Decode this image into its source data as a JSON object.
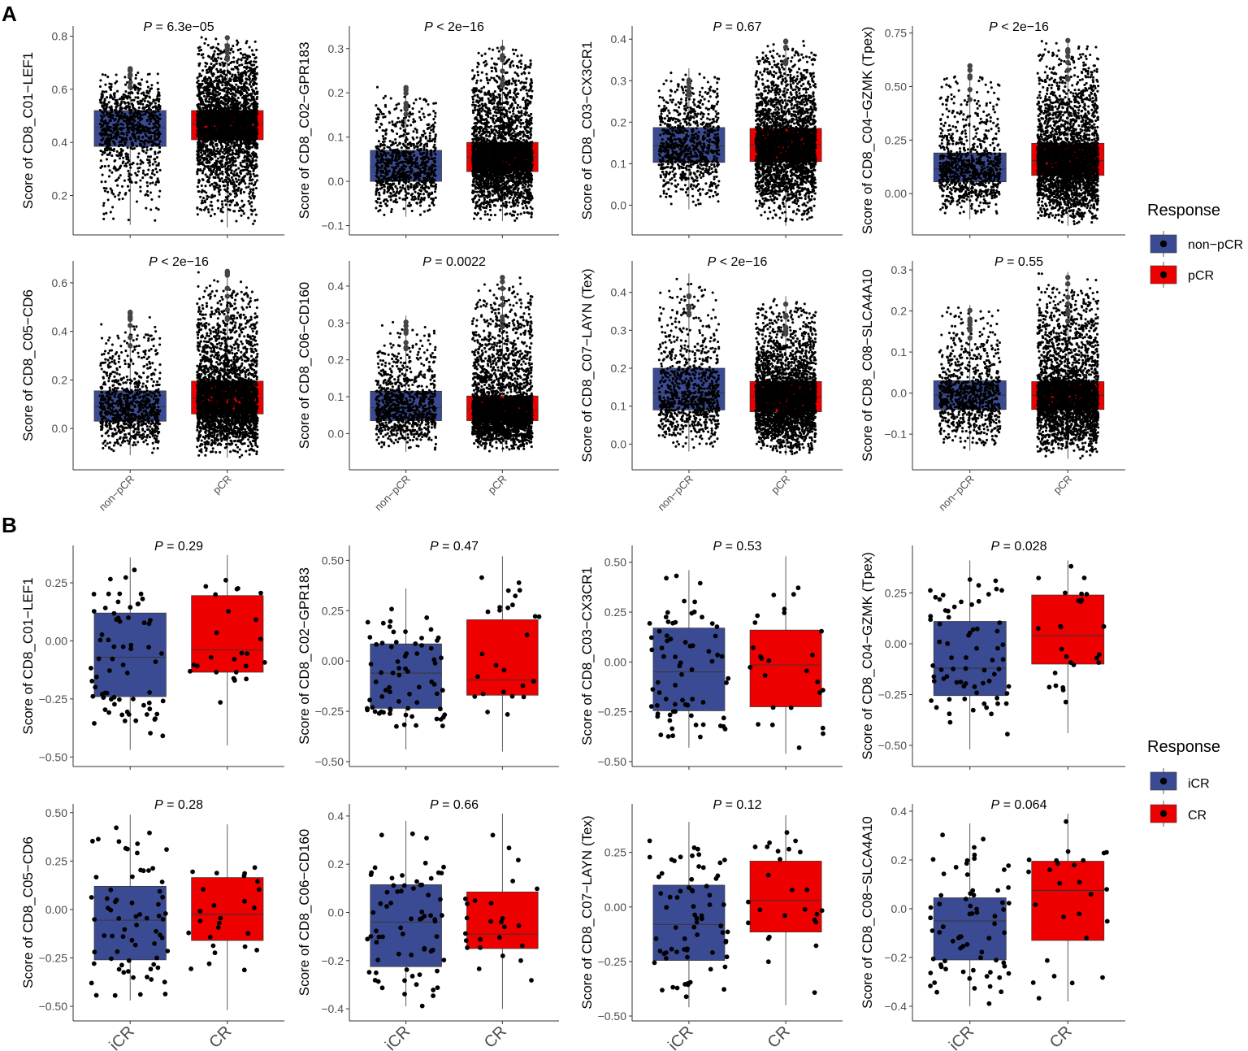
{
  "colors": {
    "non_pcr": "#3B4B93",
    "pcr": "#EE0000",
    "icr": "#3B4B93",
    "cr": "#EE0000",
    "points": "#000000",
    "axis": "#333333"
  },
  "panel_a": {
    "label": "A",
    "legend": {
      "title": "Response",
      "items": [
        {
          "label": "non−pCR",
          "color": "#3B4B93"
        },
        {
          "label": "pCR",
          "color": "#EE0000"
        }
      ]
    }
  },
  "panel_b": {
    "label": "B",
    "legend": {
      "title": "Response",
      "items": [
        {
          "label": "iCR",
          "color": "#3B4B93"
        },
        {
          "label": "CR",
          "color": "#EE0000"
        }
      ]
    }
  },
  "chart_data": [
    {
      "type": "box",
      "panel": "A",
      "title": "P = 6.3e−05",
      "p_label": "P",
      "p_text": " = 6.3e−05",
      "ylabel": "Score of CD8_C01−LEF1",
      "categories": [
        "non−pCR",
        "pCR"
      ],
      "ylim": [
        0.07,
        0.82
      ],
      "yticks": [
        0.2,
        0.4,
        0.6,
        0.8
      ],
      "ytick_labels": [
        "0.2",
        "0.4",
        "0.6",
        "0.8"
      ],
      "boxes": [
        {
          "group": "non−pCR",
          "min": 0.09,
          "q1": 0.385,
          "median": 0.455,
          "q3": 0.52,
          "max": 0.68
        },
        {
          "group": "pCR",
          "min": 0.08,
          "q1": 0.41,
          "median": 0.47,
          "q3": 0.52,
          "max": 0.8
        }
      ],
      "n_points": [
        900,
        3000
      ]
    },
    {
      "type": "box",
      "panel": "A",
      "title": "P < 2e−16",
      "p_label": "P",
      "p_text": " < 2e−16",
      "ylabel": "Score of CD8_C02−GPR183",
      "categories": [
        "non−pCR",
        "pCR"
      ],
      "ylim": [
        -0.11,
        0.34
      ],
      "yticks": [
        -0.1,
        0.0,
        0.1,
        0.2,
        0.3
      ],
      "ytick_labels": [
        "−0.1",
        "0.0",
        "0.1",
        "0.2",
        "0.3"
      ],
      "boxes": [
        {
          "group": "non−pCR",
          "min": -0.08,
          "q1": 0.0,
          "median": 0.033,
          "q3": 0.07,
          "max": 0.215
        },
        {
          "group": "pCR",
          "min": -0.09,
          "q1": 0.022,
          "median": 0.055,
          "q3": 0.088,
          "max": 0.32
        }
      ],
      "n_points": [
        900,
        3000
      ]
    },
    {
      "type": "box",
      "panel": "A",
      "title": "P = 0.67",
      "p_label": "P",
      "p_text": " = 0.67",
      "ylabel": "Score of CD8_C03−CX3CR1",
      "categories": [
        "non−pCR",
        "pCR"
      ],
      "ylim": [
        -0.06,
        0.42
      ],
      "yticks": [
        0.0,
        0.1,
        0.2,
        0.3,
        0.4
      ],
      "ytick_labels": [
        "0.0",
        "0.1",
        "0.2",
        "0.3",
        "0.4"
      ],
      "boxes": [
        {
          "group": "non−pCR",
          "min": -0.01,
          "q1": 0.103,
          "median": 0.143,
          "q3": 0.187,
          "max": 0.33
        },
        {
          "group": "pCR",
          "min": -0.05,
          "q1": 0.105,
          "median": 0.145,
          "q3": 0.185,
          "max": 0.4
        }
      ],
      "n_points": [
        900,
        3000
      ]
    },
    {
      "type": "box",
      "panel": "A",
      "title": "P < 2e−16",
      "p_label": "P",
      "p_text": " < 2e−16",
      "ylabel": "Score of CD8_C04−GZMK (Tpex)",
      "categories": [
        "non−pCR",
        "pCR"
      ],
      "ylim": [
        -0.17,
        0.76
      ],
      "yticks": [
        0.0,
        0.25,
        0.5,
        0.75
      ],
      "ytick_labels": [
        "0.00",
        "0.25",
        "0.50",
        "0.75"
      ],
      "boxes": [
        {
          "group": "non−pCR",
          "min": -0.12,
          "q1": 0.055,
          "median": 0.115,
          "q3": 0.19,
          "max": 0.6
        },
        {
          "group": "pCR",
          "min": -0.15,
          "q1": 0.085,
          "median": 0.155,
          "q3": 0.235,
          "max": 0.72
        }
      ],
      "n_points": [
        900,
        3000
      ]
    },
    {
      "type": "box",
      "panel": "A",
      "title": "P < 2e−16",
      "p_label": "P",
      "p_text": " < 2e−16",
      "ylabel": "Score of CD8_C05−CD6",
      "categories": [
        "non−pCR",
        "pCR"
      ],
      "ylim": [
        -0.15,
        0.67
      ],
      "yticks": [
        0.0,
        0.2,
        0.4,
        0.6
      ],
      "ytick_labels": [
        "0.0",
        "0.2",
        "0.4",
        "0.6"
      ],
      "boxes": [
        {
          "group": "non−pCR",
          "min": -0.11,
          "q1": 0.03,
          "median": 0.09,
          "q3": 0.155,
          "max": 0.48
        },
        {
          "group": "pCR",
          "min": -0.12,
          "q1": 0.06,
          "median": 0.125,
          "q3": 0.195,
          "max": 0.65
        }
      ],
      "n_points": [
        900,
        3000
      ]
    },
    {
      "type": "box",
      "panel": "A",
      "title": "P = 0.0022",
      "p_label": "P",
      "p_text": " = 0.0022",
      "ylabel": "Score of CD8_C06−CD160",
      "categories": [
        "non−pCR",
        "pCR"
      ],
      "ylim": [
        -0.085,
        0.455
      ],
      "yticks": [
        0.0,
        0.1,
        0.2,
        0.3,
        0.4
      ],
      "ytick_labels": [
        "0.0",
        "0.1",
        "0.2",
        "0.3",
        "0.4"
      ],
      "boxes": [
        {
          "group": "non−pCR",
          "min": -0.05,
          "q1": 0.035,
          "median": 0.07,
          "q3": 0.115,
          "max": 0.32
        },
        {
          "group": "pCR",
          "min": -0.05,
          "q1": 0.035,
          "median": 0.065,
          "q3": 0.102,
          "max": 0.43
        }
      ],
      "n_points": [
        900,
        3000
      ]
    },
    {
      "type": "box",
      "panel": "A",
      "title": "P < 2e−16",
      "p_label": "P",
      "p_text": " < 2e−16",
      "ylabel": "Score of CD8_C07−LAYN (Tex)",
      "categories": [
        "non−pCR",
        "pCR"
      ],
      "ylim": [
        -0.055,
        0.47
      ],
      "yticks": [
        0.0,
        0.1,
        0.2,
        0.3,
        0.4
      ],
      "ytick_labels": [
        "0.0",
        "0.1",
        "0.2",
        "0.3",
        "0.4"
      ],
      "boxes": [
        {
          "group": "non−pCR",
          "min": -0.02,
          "q1": 0.09,
          "median": 0.135,
          "q3": 0.2,
          "max": 0.45
        },
        {
          "group": "pCR",
          "min": -0.03,
          "q1": 0.085,
          "median": 0.125,
          "q3": 0.165,
          "max": 0.39
        }
      ],
      "n_points": [
        900,
        3000
      ]
    },
    {
      "type": "box",
      "panel": "A",
      "title": "P = 0.55",
      "p_label": "P",
      "p_text": " = 0.55",
      "ylabel": "Score of CD8_C08−SLCA4A10",
      "categories": [
        "non−pCR",
        "pCR"
      ],
      "ylim": [
        -0.175,
        0.31
      ],
      "yticks": [
        -0.1,
        0.0,
        0.1,
        0.2,
        0.3
      ],
      "ytick_labels": [
        "−0.1",
        "0.0",
        "0.1",
        "0.2",
        "0.3"
      ],
      "boxes": [
        {
          "group": "non−pCR",
          "min": -0.14,
          "q1": -0.04,
          "median": -0.005,
          "q3": 0.03,
          "max": 0.215
        },
        {
          "group": "pCR",
          "min": -0.16,
          "q1": -0.04,
          "median": -0.005,
          "q3": 0.028,
          "max": 0.295
        }
      ],
      "n_points": [
        900,
        3000
      ]
    },
    {
      "type": "box",
      "panel": "B",
      "title": "P = 0.29",
      "p_label": "P",
      "p_text": " = 0.29",
      "ylabel": "Score of CD8_C01−LEF1",
      "categories": [
        "iCR",
        "CR"
      ],
      "ylim": [
        -0.52,
        0.39
      ],
      "yticks": [
        -0.5,
        -0.25,
        0.0,
        0.25
      ],
      "ytick_labels": [
        "−0.50",
        "−0.25",
        "0.00",
        "0.25"
      ],
      "boxes": [
        {
          "group": "iCR",
          "min": -0.47,
          "q1": -0.24,
          "median": -0.07,
          "q3": 0.12,
          "max": 0.36
        },
        {
          "group": "CR",
          "min": -0.45,
          "q1": -0.135,
          "median": -0.04,
          "q3": 0.195,
          "max": 0.37
        }
      ],
      "n_points": [
        70,
        26
      ]
    },
    {
      "type": "box",
      "panel": "B",
      "title": "P = 0.47",
      "p_label": "P",
      "p_text": " = 0.47",
      "ylabel": "Score of CD8_C02−GPR183",
      "categories": [
        "iCR",
        "CR"
      ],
      "ylim": [
        -0.5,
        0.55
      ],
      "yticks": [
        -0.5,
        -0.25,
        0.0,
        0.25,
        0.5
      ],
      "ytick_labels": [
        "−0.50",
        "−0.25",
        "0.00",
        "0.25",
        "0.50"
      ],
      "boxes": [
        {
          "group": "iCR",
          "min": -0.44,
          "q1": -0.235,
          "median": -0.06,
          "q3": 0.085,
          "max": 0.36
        },
        {
          "group": "CR",
          "min": -0.45,
          "q1": -0.17,
          "median": -0.095,
          "q3": 0.205,
          "max": 0.52
        }
      ],
      "n_points": [
        70,
        26
      ]
    },
    {
      "type": "box",
      "panel": "B",
      "title": "P = 0.53",
      "p_label": "P",
      "p_text": " = 0.53",
      "ylabel": "Score of CD8_C03−CX3CR1",
      "categories": [
        "iCR",
        "CR"
      ],
      "ylim": [
        -0.5,
        0.56
      ],
      "yticks": [
        -0.5,
        -0.25,
        0.0,
        0.25,
        0.5
      ],
      "ytick_labels": [
        "−0.50",
        "−0.25",
        "0.00",
        "0.25",
        "0.50"
      ],
      "boxes": [
        {
          "group": "iCR",
          "min": -0.43,
          "q1": -0.245,
          "median": -0.05,
          "q3": 0.17,
          "max": 0.46
        },
        {
          "group": "CR",
          "min": -0.46,
          "q1": -0.225,
          "median": -0.015,
          "q3": 0.16,
          "max": 0.53
        }
      ],
      "n_points": [
        70,
        26
      ]
    },
    {
      "type": "box",
      "panel": "B",
      "title": "P = 0.028",
      "p_label": "P",
      "p_text": " = 0.028",
      "ylabel": "Score of CD8_C04−GZMK (Tpex)",
      "categories": [
        "iCR",
        "CR"
      ],
      "ylim": [
        -0.58,
        0.46
      ],
      "yticks": [
        -0.5,
        -0.25,
        0.0,
        0.25
      ],
      "ytick_labels": [
        "−0.50",
        "−0.25",
        "0.00",
        "0.25"
      ],
      "boxes": [
        {
          "group": "iCR",
          "min": -0.52,
          "q1": -0.255,
          "median": -0.12,
          "q3": 0.11,
          "max": 0.41
        },
        {
          "group": "CR",
          "min": -0.44,
          "q1": -0.1,
          "median": 0.04,
          "q3": 0.24,
          "max": 0.41
        }
      ],
      "n_points": [
        70,
        26
      ]
    },
    {
      "type": "box",
      "panel": "B",
      "title": "P = 0.28",
      "p_label": "P",
      "p_text": " = 0.28",
      "ylabel": "Score of CD8_C05−CD6",
      "categories": [
        "iCR",
        "CR"
      ],
      "ylim": [
        -0.55,
        0.52
      ],
      "yticks": [
        -0.5,
        -0.25,
        0.0,
        0.25,
        0.5
      ],
      "ytick_labels": [
        "−0.50",
        "−0.25",
        "0.00",
        "0.25",
        "0.50"
      ],
      "boxes": [
        {
          "group": "iCR",
          "min": -0.47,
          "q1": -0.26,
          "median": -0.055,
          "q3": 0.12,
          "max": 0.49
        },
        {
          "group": "CR",
          "min": -0.52,
          "q1": -0.16,
          "median": -0.025,
          "q3": 0.165,
          "max": 0.44
        }
      ],
      "n_points": [
        70,
        26
      ]
    },
    {
      "type": "box",
      "panel": "B",
      "title": "P = 0.66",
      "p_label": "P",
      "p_text": " = 0.66",
      "ylabel": "Score of CD8_C06−CD160",
      "categories": [
        "iCR",
        "CR"
      ],
      "ylim": [
        -0.43,
        0.43
      ],
      "yticks": [
        -0.4,
        -0.2,
        0.0,
        0.2,
        0.4
      ],
      "ytick_labels": [
        "−0.4",
        "−0.2",
        "0.0",
        "0.2",
        "0.4"
      ],
      "boxes": [
        {
          "group": "iCR",
          "min": -0.39,
          "q1": -0.225,
          "median": -0.04,
          "q3": 0.115,
          "max": 0.38
        },
        {
          "group": "CR",
          "min": -0.4,
          "q1": -0.15,
          "median": -0.09,
          "q3": 0.085,
          "max": 0.41
        }
      ],
      "n_points": [
        70,
        26
      ]
    },
    {
      "type": "box",
      "panel": "B",
      "title": "P = 0.12",
      "p_label": "P",
      "p_text": " = 0.12",
      "ylabel": "Score of CD8_C07−LAYN (Tex)",
      "categories": [
        "iCR",
        "CR"
      ],
      "ylim": [
        -0.5,
        0.45
      ],
      "yticks": [
        -0.5,
        -0.25,
        0.0,
        0.25
      ],
      "ytick_labels": [
        "−0.50",
        "−0.25",
        "0.00",
        "0.25"
      ],
      "boxes": [
        {
          "group": "iCR",
          "min": -0.46,
          "q1": -0.245,
          "median": -0.08,
          "q3": 0.1,
          "max": 0.39
        },
        {
          "group": "CR",
          "min": -0.45,
          "q1": -0.115,
          "median": 0.03,
          "q3": 0.21,
          "max": 0.42
        }
      ],
      "n_points": [
        70,
        26
      ]
    },
    {
      "type": "box",
      "panel": "B",
      "title": "P = 0.064",
      "p_label": "P",
      "p_text": " = 0.064",
      "ylabel": "Score of CD8_C08−SLCA4A10",
      "categories": [
        "iCR",
        "CR"
      ],
      "ylim": [
        -0.44,
        0.41
      ],
      "yticks": [
        -0.4,
        -0.2,
        0.0,
        0.2,
        0.4
      ],
      "ytick_labels": [
        "−0.4",
        "−0.2",
        "0.0",
        "0.2",
        "0.4"
      ],
      "boxes": [
        {
          "group": "iCR",
          "min": -0.4,
          "q1": -0.21,
          "median": -0.05,
          "q3": 0.045,
          "max": 0.35
        },
        {
          "group": "CR",
          "min": -0.38,
          "q1": -0.13,
          "median": 0.075,
          "q3": 0.195,
          "max": 0.39
        }
      ],
      "n_points": [
        70,
        26
      ]
    }
  ]
}
